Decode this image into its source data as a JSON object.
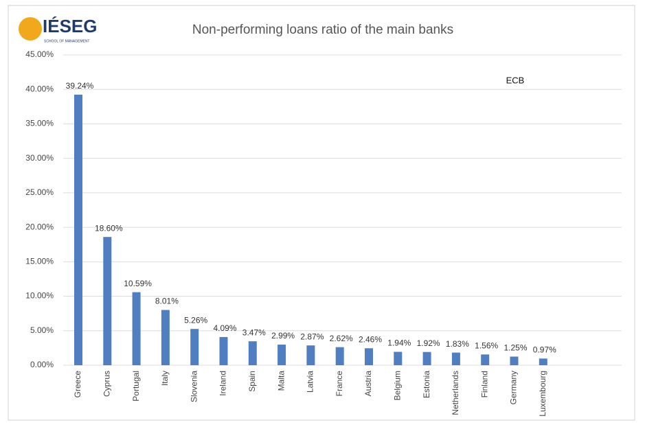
{
  "logo": {
    "name": "IÉSEG",
    "subtitle": "SCHOOL OF MANAGEMENT"
  },
  "chart_data": {
    "type": "bar",
    "title": "Non-performing loans ratio of the main banks",
    "annotation": "ECB",
    "categories": [
      "Greece",
      "Cyprus",
      "Portugal",
      "Italy",
      "Slovenia",
      "Ireland",
      "Spain",
      "Malta",
      "Latvia",
      "France",
      "Austria",
      "Belgium",
      "Estonia",
      "Netherlands",
      "Finland",
      "Germany",
      "Luxembourg"
    ],
    "values": [
      39.24,
      18.6,
      10.59,
      8.01,
      5.26,
      4.09,
      3.47,
      2.99,
      2.87,
      2.62,
      2.46,
      1.94,
      1.92,
      1.83,
      1.56,
      1.25,
      0.97
    ],
    "value_labels": [
      "39.24%",
      "18.60%",
      "10.59%",
      "8.01%",
      "5.26%",
      "4.09%",
      "3.47%",
      "2.99%",
      "2.87%",
      "2.62%",
      "2.46%",
      "1.94%",
      "1.92%",
      "1.83%",
      "1.56%",
      "1.25%",
      "0.97%"
    ],
    "color": "#4f7fc0",
    "ylim": [
      0,
      45
    ],
    "yticks": [
      {
        "value": 0,
        "label": "0.00%"
      },
      {
        "value": 5,
        "label": "5.00%"
      },
      {
        "value": 10,
        "label": "10.00%"
      },
      {
        "value": 15,
        "label": "15.00%"
      },
      {
        "value": 20,
        "label": "20.00%"
      },
      {
        "value": 25,
        "label": "25.00%"
      },
      {
        "value": 30,
        "label": "30.00%"
      },
      {
        "value": 35,
        "label": "35.00%"
      },
      {
        "value": 40,
        "label": "40.00%"
      },
      {
        "value": 45,
        "label": "45.00%"
      }
    ],
    "grid": true
  }
}
